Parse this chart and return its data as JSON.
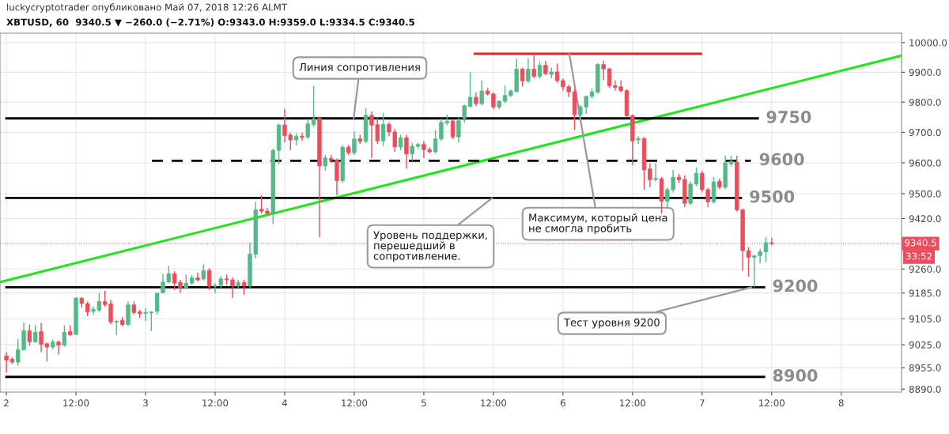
{
  "chart_data": {
    "type": "candlestick",
    "title": "luckycryptotrader опубликовано Май 07, 2018 12:26 ALMT",
    "subtitle": "XBTUSD, 60  9340.5 ▼ −260.0 (−2.71%) O:9343.0 H:9359.0 L:9334.5 C:9340.5",
    "log": true,
    "grid": true,
    "xlim": [
      "2018-05-01T22:54",
      "2018-05-08T10:24"
    ],
    "xticks": [
      {
        "value": "2018-05-02T00:00",
        "label": "2"
      },
      {
        "value": "2018-05-02T12:00",
        "label": "12:00"
      },
      {
        "value": "2018-05-03T00:00",
        "label": "3"
      },
      {
        "value": "2018-05-03T12:00",
        "label": "12:00"
      },
      {
        "value": "2018-05-04T00:00",
        "label": "4"
      },
      {
        "value": "2018-05-04T12:00",
        "label": "12:00"
      },
      {
        "value": "2018-05-05T00:00",
        "label": "5"
      },
      {
        "value": "2018-05-05T12:00",
        "label": "12:00"
      },
      {
        "value": "2018-05-06T00:00",
        "label": "6"
      },
      {
        "value": "2018-05-06T12:00",
        "label": "12:00"
      },
      {
        "value": "2018-05-07T00:00",
        "label": "7"
      },
      {
        "value": "2018-05-07T12:00",
        "label": "12:00"
      },
      {
        "value": "2018-05-08T00:00",
        "label": "8"
      }
    ],
    "ylim": [
      8881,
      10032
    ],
    "yticks": [
      {
        "value": 10000,
        "label": "10000.0"
      },
      {
        "value": 9900,
        "label": "9900.0"
      },
      {
        "value": 9800,
        "label": "9800.0"
      },
      {
        "value": 9700,
        "label": "9700.0"
      },
      {
        "value": 9600,
        "label": "9600.0"
      },
      {
        "value": 9500,
        "label": "9500.0"
      },
      {
        "value": 9420,
        "label": "9420.0"
      },
      {
        "value": 9260,
        "label": "9260.0"
      },
      {
        "value": 9185,
        "label": "9185.0"
      },
      {
        "value": 9105,
        "label": "9105.0"
      },
      {
        "value": 9025,
        "label": "9025.0"
      },
      {
        "value": 8955,
        "label": "8955.0"
      },
      {
        "value": 8890,
        "label": "8890.0"
      }
    ],
    "series": [
      {
        "type": "candlestick",
        "x": [
          "2018-05-02T00:00",
          "2018-05-02T01:00",
          "2018-05-02T02:00",
          "2018-05-02T03:00",
          "2018-05-02T04:00",
          "2018-05-02T05:00",
          "2018-05-02T06:00",
          "2018-05-02T07:00",
          "2018-05-02T08:00",
          "2018-05-02T09:00",
          "2018-05-02T10:00",
          "2018-05-02T11:00",
          "2018-05-02T12:00",
          "2018-05-02T13:00",
          "2018-05-02T14:00",
          "2018-05-02T15:00",
          "2018-05-02T16:00",
          "2018-05-02T17:00",
          "2018-05-02T18:00",
          "2018-05-02T19:00",
          "2018-05-02T20:00",
          "2018-05-02T21:00",
          "2018-05-02T22:00",
          "2018-05-02T23:00",
          "2018-05-03T00:00",
          "2018-05-03T01:00",
          "2018-05-03T02:00",
          "2018-05-03T03:00",
          "2018-05-03T04:00",
          "2018-05-03T05:00",
          "2018-05-03T06:00",
          "2018-05-03T07:00",
          "2018-05-03T08:00",
          "2018-05-03T09:00",
          "2018-05-03T10:00",
          "2018-05-03T11:00",
          "2018-05-03T12:00",
          "2018-05-03T13:00",
          "2018-05-03T14:00",
          "2018-05-03T15:00",
          "2018-05-03T16:00",
          "2018-05-03T17:00",
          "2018-05-03T18:00",
          "2018-05-03T19:00",
          "2018-05-03T20:00",
          "2018-05-03T21:00",
          "2018-05-03T22:00",
          "2018-05-03T23:00",
          "2018-05-04T00:00",
          "2018-05-04T01:00",
          "2018-05-04T02:00",
          "2018-05-04T03:00",
          "2018-05-04T04:00",
          "2018-05-04T05:00",
          "2018-05-04T06:00",
          "2018-05-04T07:00",
          "2018-05-04T08:00",
          "2018-05-04T09:00",
          "2018-05-04T10:00",
          "2018-05-04T11:00",
          "2018-05-04T12:00",
          "2018-05-04T13:00",
          "2018-05-04T14:00",
          "2018-05-04T15:00",
          "2018-05-04T16:00",
          "2018-05-04T17:00",
          "2018-05-04T18:00",
          "2018-05-04T19:00",
          "2018-05-04T20:00",
          "2018-05-04T21:00",
          "2018-05-04T22:00",
          "2018-05-04T23:00",
          "2018-05-05T00:00",
          "2018-05-05T01:00",
          "2018-05-05T02:00",
          "2018-05-05T03:00",
          "2018-05-05T04:00",
          "2018-05-05T05:00",
          "2018-05-05T06:00",
          "2018-05-05T07:00",
          "2018-05-05T08:00",
          "2018-05-05T09:00",
          "2018-05-05T10:00",
          "2018-05-05T11:00",
          "2018-05-05T12:00",
          "2018-05-05T13:00",
          "2018-05-05T14:00",
          "2018-05-05T15:00",
          "2018-05-05T16:00",
          "2018-05-05T17:00",
          "2018-05-05T18:00",
          "2018-05-05T19:00",
          "2018-05-05T20:00",
          "2018-05-05T21:00",
          "2018-05-05T22:00",
          "2018-05-05T23:00",
          "2018-05-06T00:00",
          "2018-05-06T01:00",
          "2018-05-06T02:00",
          "2018-05-06T03:00",
          "2018-05-06T04:00",
          "2018-05-06T05:00",
          "2018-05-06T06:00",
          "2018-05-06T07:00",
          "2018-05-06T08:00",
          "2018-05-06T09:00",
          "2018-05-06T10:00",
          "2018-05-06T11:00",
          "2018-05-06T12:00",
          "2018-05-06T13:00",
          "2018-05-06T14:00",
          "2018-05-06T15:00",
          "2018-05-06T16:00",
          "2018-05-06T17:00",
          "2018-05-06T18:00",
          "2018-05-06T19:00",
          "2018-05-06T20:00",
          "2018-05-06T21:00",
          "2018-05-06T22:00",
          "2018-05-06T23:00",
          "2018-05-07T00:00",
          "2018-05-07T01:00",
          "2018-05-07T02:00",
          "2018-05-07T03:00",
          "2018-05-07T04:00",
          "2018-05-07T05:00",
          "2018-05-07T06:00",
          "2018-05-07T07:00",
          "2018-05-07T08:00",
          "2018-05-07T09:00",
          "2018-05-07T10:00",
          "2018-05-07T11:00",
          "2018-05-07T12:00"
        ],
        "ohlc": [
          [
            8991,
            9003,
            8941,
            8978
          ],
          [
            8981,
            8986,
            8966,
            8972
          ],
          [
            8972,
            9043,
            8961,
            9010
          ],
          [
            9010,
            9093,
            9007,
            9068
          ],
          [
            9068,
            9087,
            9022,
            9034
          ],
          [
            9034,
            9085,
            9031,
            9063
          ],
          [
            9065,
            9092,
            9002,
            9026
          ],
          [
            9028,
            9031,
            8974,
            9018
          ],
          [
            9018,
            9041,
            9011,
            9033
          ],
          [
            9033,
            9038,
            8995,
            9024
          ],
          [
            9024,
            9085,
            9019,
            9063
          ],
          [
            9065,
            9085,
            9051,
            9056
          ],
          [
            9057,
            9171,
            9054,
            9169
          ],
          [
            9169,
            9171,
            9140,
            9152
          ],
          [
            9152,
            9158,
            9112,
            9126
          ],
          [
            9128,
            9143,
            9118,
            9134
          ],
          [
            9132,
            9186,
            9126,
            9158
          ],
          [
            9158,
            9192,
            9143,
            9149
          ],
          [
            9151,
            9164,
            9087,
            9095
          ],
          [
            9095,
            9101,
            9055,
            9097
          ],
          [
            9100,
            9111,
            9082,
            9087
          ],
          [
            9087,
            9159,
            9082,
            9148
          ],
          [
            9148,
            9159,
            9118,
            9124
          ],
          [
            9126,
            9133,
            9108,
            9121
          ],
          [
            9122,
            9138,
            9098,
            9124
          ],
          [
            9123,
            9128,
            9067,
            9126
          ],
          [
            9128,
            9186,
            9118,
            9184
          ],
          [
            9186,
            9244,
            9184,
            9219
          ],
          [
            9219,
            9269,
            9216,
            9245
          ],
          [
            9245,
            9253,
            9194,
            9216
          ],
          [
            9218,
            9226,
            9185,
            9201
          ],
          [
            9201,
            9243,
            9196,
            9216
          ],
          [
            9216,
            9241,
            9211,
            9232
          ],
          [
            9232,
            9249,
            9221,
            9226
          ],
          [
            9229,
            9275,
            9224,
            9255
          ],
          [
            9255,
            9263,
            9194,
            9206
          ],
          [
            9206,
            9216,
            9185,
            9208
          ],
          [
            9209,
            9238,
            9201,
            9229
          ],
          [
            9229,
            9242,
            9211,
            9226
          ],
          [
            9226,
            9234,
            9169,
            9207
          ],
          [
            9207,
            9226,
            9201,
            9218
          ],
          [
            9218,
            9226,
            9179,
            9207
          ],
          [
            9207,
            9344,
            9201,
            9307
          ],
          [
            9307,
            9474,
            9294,
            9448
          ],
          [
            9450,
            9495,
            9436,
            9444
          ],
          [
            9444,
            9455,
            9431,
            9436
          ],
          [
            9436,
            9646,
            9402,
            9641
          ],
          [
            9641,
            9728,
            9595,
            9724
          ],
          [
            9724,
            9777,
            9667,
            9689
          ],
          [
            9691,
            9699,
            9641,
            9675
          ],
          [
            9675,
            9697,
            9657,
            9687
          ],
          [
            9687,
            9699,
            9672,
            9683
          ],
          [
            9685,
            9745,
            9677,
            9728
          ],
          [
            9726,
            9854,
            9718,
            9744
          ],
          [
            9746,
            9749,
            9361,
            9590
          ],
          [
            9590,
            9626,
            9575,
            9616
          ],
          [
            9614,
            9626,
            9600,
            9609
          ],
          [
            9609,
            9614,
            9495,
            9542
          ],
          [
            9542,
            9658,
            9534,
            9651
          ],
          [
            9651,
            9658,
            9626,
            9633
          ],
          [
            9633,
            9703,
            9626,
            9678
          ],
          [
            9679,
            9692,
            9662,
            9670
          ],
          [
            9670,
            9779,
            9665,
            9756
          ],
          [
            9756,
            9769,
            9616,
            9724
          ],
          [
            9725,
            9749,
            9662,
            9672
          ],
          [
            9672,
            9763,
            9655,
            9726
          ],
          [
            9726,
            9734,
            9687,
            9701
          ],
          [
            9701,
            9712,
            9636,
            9652
          ],
          [
            9652,
            9692,
            9641,
            9682
          ],
          [
            9682,
            9692,
            9581,
            9629
          ],
          [
            9629,
            9666,
            9606,
            9654
          ],
          [
            9654,
            9666,
            9646,
            9660
          ],
          [
            9660,
            9671,
            9616,
            9643
          ],
          [
            9643,
            9651,
            9631,
            9636
          ],
          [
            9636,
            9707,
            9631,
            9678
          ],
          [
            9678,
            9746,
            9672,
            9733
          ],
          [
            9731,
            9759,
            9724,
            9736
          ],
          [
            9737,
            9744,
            9677,
            9685
          ],
          [
            9685,
            9749,
            9667,
            9738
          ],
          [
            9746,
            9791,
            9731,
            9788
          ],
          [
            9786,
            9900,
            9781,
            9816
          ],
          [
            9816,
            9832,
            9786,
            9795
          ],
          [
            9795,
            9872,
            9789,
            9837
          ],
          [
            9837,
            9847,
            9822,
            9827
          ],
          [
            9827,
            9832,
            9776,
            9784
          ],
          [
            9784,
            9806,
            9776,
            9803
          ],
          [
            9803,
            9855,
            9796,
            9822
          ],
          [
            9822,
            9842,
            9817,
            9837
          ],
          [
            9835,
            9945,
            9832,
            9910
          ],
          [
            9910,
            9915,
            9852,
            9871
          ],
          [
            9871,
            9947,
            9864,
            9910
          ],
          [
            9910,
            9962,
            9879,
            9886
          ],
          [
            9886,
            9935,
            9879,
            9923
          ],
          [
            9923,
            9938,
            9890,
            9895
          ],
          [
            9893,
            9915,
            9880,
            9901
          ],
          [
            9901,
            9929,
            9864,
            9872
          ],
          [
            9872,
            9879,
            9838,
            9851
          ],
          [
            9851,
            9858,
            9816,
            9834
          ],
          [
            9834,
            9843,
            9707,
            9758
          ],
          [
            9758,
            9791,
            9750,
            9784
          ],
          [
            9784,
            9820,
            9761,
            9819
          ],
          [
            9819,
            9847,
            9812,
            9834
          ],
          [
            9833,
            9931,
            9828,
            9926
          ],
          [
            9926,
            9938,
            9874,
            9911
          ],
          [
            9911,
            9915,
            9848,
            9855
          ],
          [
            9855,
            9873,
            9838,
            9849
          ],
          [
            9851,
            9873,
            9833,
            9838
          ],
          [
            9838,
            9843,
            9750,
            9755
          ],
          [
            9755,
            9760,
            9592,
            9672
          ],
          [
            9675,
            9687,
            9662,
            9679
          ],
          [
            9679,
            9685,
            9513,
            9577
          ],
          [
            9580,
            9598,
            9521,
            9545
          ],
          [
            9546,
            9598,
            9539,
            9549
          ],
          [
            9548,
            9554,
            9436,
            9476
          ],
          [
            9476,
            9519,
            9453,
            9513
          ],
          [
            9513,
            9577,
            9504,
            9553
          ],
          [
            9553,
            9564,
            9534,
            9545
          ],
          [
            9546,
            9559,
            9457,
            9469
          ],
          [
            9469,
            9539,
            9463,
            9531
          ],
          [
            9531,
            9585,
            9524,
            9566
          ],
          [
            9566,
            9575,
            9504,
            9513
          ],
          [
            9513,
            9519,
            9457,
            9474
          ],
          [
            9474,
            9554,
            9468,
            9538
          ],
          [
            9540,
            9549,
            9514,
            9521
          ],
          [
            9521,
            9623,
            9514,
            9600
          ],
          [
            9597,
            9623,
            9590,
            9605
          ],
          [
            9602,
            9623,
            9443,
            9448
          ],
          [
            9448,
            9453,
            9254,
            9318
          ],
          [
            9318,
            9329,
            9236,
            9297
          ],
          [
            9297,
            9304,
            9203,
            9302
          ],
          [
            9302,
            9324,
            9278,
            9314
          ],
          [
            9314,
            9361,
            9281,
            9343
          ],
          [
            9343.0,
            9359.0,
            9334.5,
            9340.5
          ]
        ],
        "colors": [
          "#eb4d5c",
          "#eb4d5c",
          "#53b987",
          "#53b987",
          "#eb4d5c",
          "#53b987",
          "#eb4d5c",
          "#eb4d5c",
          "#53b987",
          "#eb4d5c",
          "#53b987",
          "#eb4d5c",
          "#53b987",
          "#eb4d5c",
          "#eb4d5c",
          "#53b987",
          "#53b987",
          "#eb4d5c",
          "#eb4d5c",
          "#53b987",
          "#eb4d5c",
          "#53b987",
          "#eb4d5c",
          "#eb4d5c",
          "#53b987",
          "#53b987",
          "#53b987",
          "#53b987",
          "#53b987",
          "#eb4d5c",
          "#eb4d5c",
          "#53b987",
          "#53b987",
          "#eb4d5c",
          "#53b987",
          "#eb4d5c",
          "#53b987",
          "#53b987",
          "#eb4d5c",
          "#eb4d5c",
          "#53b987",
          "#eb4d5c",
          "#53b987",
          "#53b987",
          "#eb4d5c",
          "#eb4d5c",
          "#53b987",
          "#53b987",
          "#eb4d5c",
          "#eb4d5c",
          "#53b987",
          "#eb4d5c",
          "#53b987",
          "#53b987",
          "#eb4d5c",
          "#53b987",
          "#eb4d5c",
          "#eb4d5c",
          "#53b987",
          "#eb4d5c",
          "#53b987",
          "#eb4d5c",
          "#53b987",
          "#eb4d5c",
          "#eb4d5c",
          "#53b987",
          "#eb4d5c",
          "#eb4d5c",
          "#53b987",
          "#eb4d5c",
          "#53b987",
          "#53b987",
          "#eb4d5c",
          "#eb4d5c",
          "#53b987",
          "#53b987",
          "#53b987",
          "#eb4d5c",
          "#53b987",
          "#53b987",
          "#53b987",
          "#eb4d5c",
          "#53b987",
          "#eb4d5c",
          "#eb4d5c",
          "#53b987",
          "#53b987",
          "#53b987",
          "#53b987",
          "#eb4d5c",
          "#53b987",
          "#eb4d5c",
          "#53b987",
          "#eb4d5c",
          "#53b987",
          "#eb4d5c",
          "#eb4d5c",
          "#eb4d5c",
          "#eb4d5c",
          "#53b987",
          "#53b987",
          "#53b987",
          "#53b987",
          "#eb4d5c",
          "#eb4d5c",
          "#eb4d5c",
          "#eb4d5c",
          "#eb4d5c",
          "#eb4d5c",
          "#53b987",
          "#eb4d5c",
          "#eb4d5c",
          "#53b987",
          "#eb4d5c",
          "#53b987",
          "#53b987",
          "#eb4d5c",
          "#eb4d5c",
          "#53b987",
          "#53b987",
          "#eb4d5c",
          "#eb4d5c",
          "#53b987",
          "#eb4d5c",
          "#53b987",
          "#53b987",
          "#eb4d5c",
          "#eb4d5c",
          "#eb4d5c",
          "#53b987",
          "#53b987",
          "#53b987",
          "#eb4d5c"
        ]
      },
      {
        "type": "line",
        "x": [
          "2018-05-01T22:54",
          "2018-05-08T10:24"
        ],
        "values": [
          9219,
          9956
        ],
        "color": "#22e51b",
        "line_style": "solid"
      },
      {
        "type": "line",
        "x": [
          "2018-05-05T08:48",
          "2018-05-06T23:48"
        ],
        "values": [
          9962,
          9962
        ],
        "color": "#e0262e",
        "line_style": "solid"
      },
      {
        "type": "line",
        "name": "9750",
        "x": [
          "2018-05-02T00:00",
          "2018-05-07T09:36"
        ],
        "values": [
          9746,
          9746
        ],
        "color": "#000000",
        "line_style": "solid"
      },
      {
        "type": "line",
        "name": "9600",
        "x": [
          "2018-05-03T01:06",
          "2018-05-07T08:24"
        ],
        "values": [
          9607,
          9607
        ],
        "color": "#000000",
        "line_style": "dashed"
      },
      {
        "type": "line",
        "name": "9500",
        "x": [
          "2018-05-02T00:00",
          "2018-05-07T06:42"
        ],
        "values": [
          9486,
          9486
        ],
        "color": "#000000",
        "line_style": "solid"
      },
      {
        "type": "line",
        "name": "9200",
        "x": [
          "2018-05-02T00:00",
          "2018-05-07T10:42"
        ],
        "values": [
          9203,
          9203
        ],
        "color": "#000000",
        "line_style": "solid"
      },
      {
        "type": "line",
        "name": "8900",
        "x": [
          "2018-05-02T00:00",
          "2018-05-07T10:42"
        ],
        "values": [
          8927,
          8927
        ],
        "color": "#000000",
        "line_style": "solid"
      }
    ],
    "ref_lines": [
      {
        "axis": "y",
        "value": 9340.5,
        "label": "9340.5",
        "color": "#eb4d5c",
        "line_style": "dotted"
      }
    ],
    "annotations": [
      {
        "text": "Линия сопротивления",
        "x": "2018-05-04T11:54",
        "y": 9746
      },
      {
        "text": "Уровень поддержки,\nперешедший в\nсопротивление.",
        "x": "2018-05-05T11:48",
        "y": 9486
      },
      {
        "text": "Максимум, который цена\nне смогла пробить",
        "x": "2018-05-06T01:06",
        "y": 9962
      },
      {
        "text": "Тест уровня 9200",
        "x": "2018-05-07T08:30",
        "y": 9203
      },
      "33:52"
    ]
  }
}
